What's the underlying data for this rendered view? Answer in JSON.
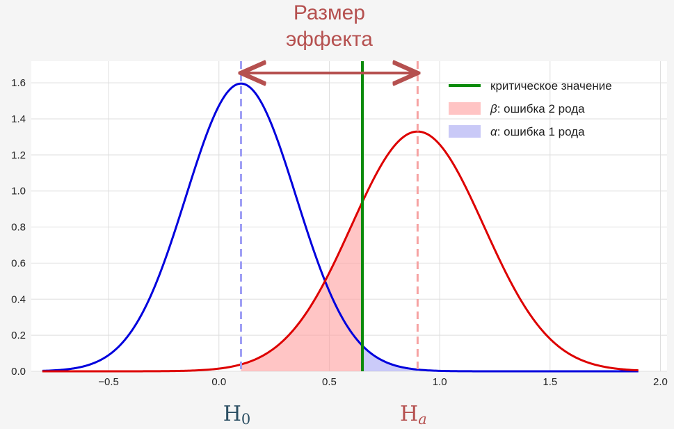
{
  "chart_data": {
    "type": "line",
    "title_lines": [
      "Размер",
      "эффекта"
    ],
    "xlim": [
      -0.85,
      2.03
    ],
    "ylim": [
      0,
      1.72
    ],
    "x_ticks": [
      -0.5,
      0.0,
      0.5,
      1.0,
      1.5,
      2.0
    ],
    "x_tick_labels": [
      "−0.5",
      "0.0",
      "0.5",
      "1.0",
      "1.5",
      "2.0"
    ],
    "y_ticks": [
      0.0,
      0.2,
      0.4,
      0.6,
      0.8,
      1.0,
      1.2,
      1.4,
      1.6
    ],
    "y_tick_labels": [
      "0.0",
      "0.2",
      "0.4",
      "0.6",
      "0.8",
      "1.0",
      "1.2",
      "1.4",
      "1.6"
    ],
    "grid": true,
    "legend_position": "top-right",
    "x_range": [
      -0.8,
      1.9
    ],
    "series": [
      {
        "key": "h0",
        "type": "normal",
        "mean": 0.1,
        "sd": 0.25,
        "color": "#0000dd"
      },
      {
        "key": "ha",
        "type": "normal",
        "mean": 0.9,
        "sd": 0.3,
        "color": "#dd0000"
      }
    ],
    "critical_value": 0.65,
    "critical_color": "#0a8a0a",
    "h0_line": {
      "x": 0.1,
      "color": "#9f9ff5"
    },
    "ha_line": {
      "x": 0.9,
      "color": "#f6a3a3"
    },
    "beta_region": {
      "series": "ha",
      "from": 0.1,
      "to": 0.65,
      "color": "#ff9f9f"
    },
    "alpha_region": {
      "series": "h0",
      "from": 0.65,
      "to": 0.9,
      "color": "#a9a9f5"
    },
    "effect_arrow": {
      "from": 0.1,
      "to": 0.9,
      "color": "#b5504f"
    },
    "legend": [
      {
        "kind": "line",
        "color": "#0a8a0a",
        "label": "критическое значение"
      },
      {
        "kind": "patch",
        "color": "#ffc4c4",
        "symbol": "β",
        "label": ": ошибка 2 рода"
      },
      {
        "kind": "patch",
        "color": "#c9c9f7",
        "symbol": "α",
        "label": ": ошибка 1 рода"
      }
    ],
    "annotations": [
      {
        "key": "h0_label",
        "main": "H",
        "sub": "0",
        "x": 0.1,
        "color": "#2c4f63"
      },
      {
        "key": "ha_label",
        "main": "H",
        "sub": "a",
        "x": 0.9,
        "color": "#b5504f"
      }
    ]
  }
}
